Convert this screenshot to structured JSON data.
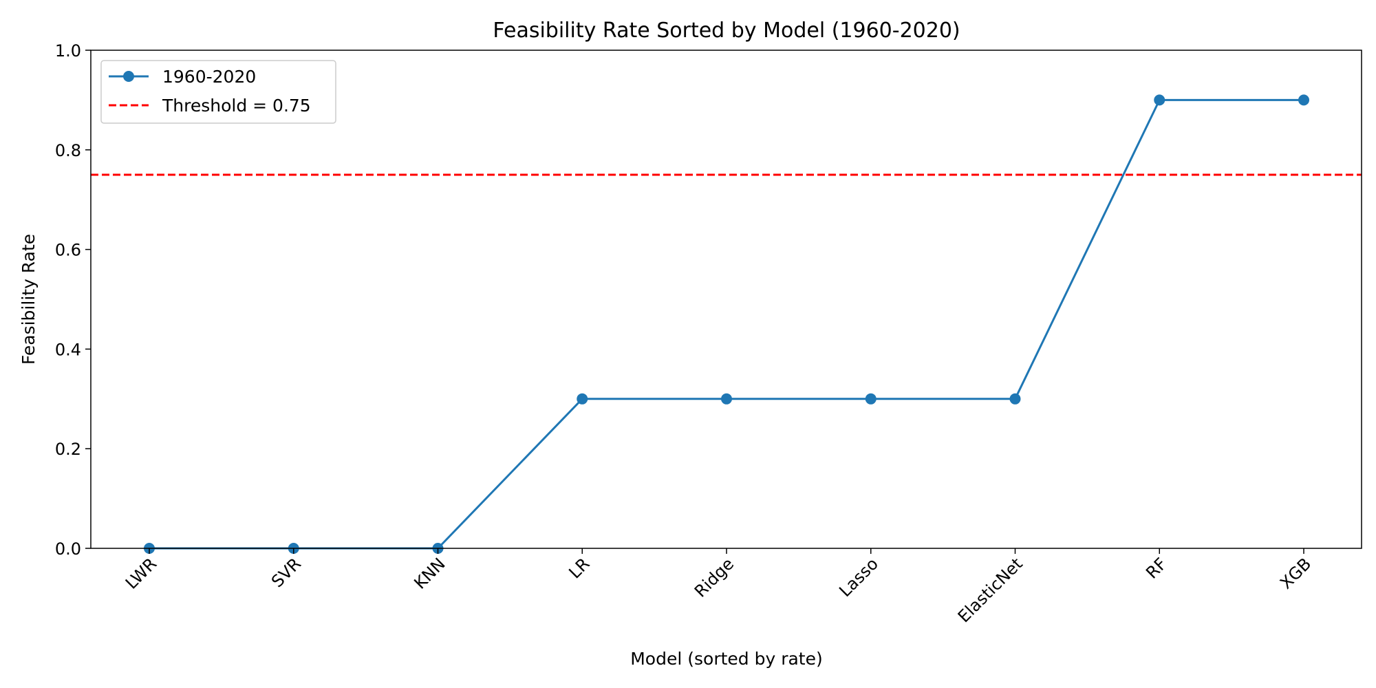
{
  "chart_data": {
    "type": "line",
    "title": "Feasibility Rate Sorted by Model (1960-2020)",
    "xlabel": "Model (sorted by rate)",
    "ylabel": "Feasibility Rate",
    "categories": [
      "LWR",
      "SVR",
      "KNN",
      "LR",
      "Ridge",
      "Lasso",
      "ElasticNet",
      "RF",
      "XGB"
    ],
    "series": [
      {
        "name": "1960-2020",
        "values": [
          0.0,
          0.0,
          0.0,
          0.3,
          0.3,
          0.3,
          0.3,
          0.9,
          0.9
        ],
        "color": "#1f77b4"
      }
    ],
    "threshold": {
      "label": "Threshold = 0.75",
      "value": 0.75,
      "color": "#ff0000"
    },
    "ylim": [
      0.0,
      1.0
    ],
    "yticks": [
      0.0,
      0.2,
      0.4,
      0.6,
      0.8,
      1.0
    ],
    "ytick_labels": [
      "0.0",
      "0.2",
      "0.4",
      "0.6",
      "0.8",
      "1.0"
    ],
    "grid": false,
    "legend_position": "top-left"
  }
}
